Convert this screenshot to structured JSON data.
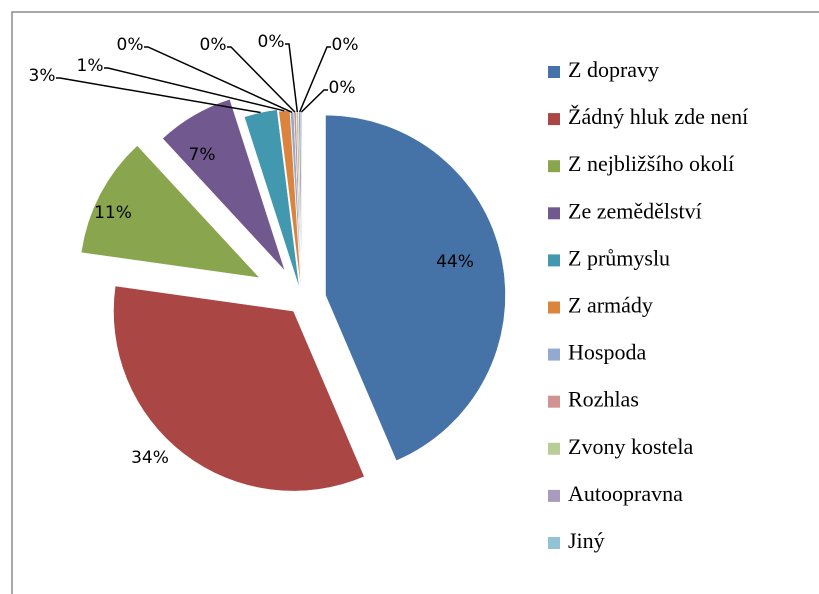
{
  "chart_data": {
    "type": "pie",
    "categories": [
      "Z dopravy",
      "Žádný hluk zde není",
      "Z nejbližšího okolí",
      "Ze zemědělství",
      "Z průmyslu",
      "Z armády",
      "Hospoda",
      "Rozhlas",
      "Zvony kostela",
      "Autoopravna",
      "Jiný"
    ],
    "values": [
      44,
      34,
      11,
      7,
      3,
      1,
      0.3,
      0.2,
      0.2,
      0.2,
      0.1
    ],
    "value_labels": [
      "44%",
      "34%",
      "11%",
      "7%",
      "3%",
      "1%",
      "0%",
      "0%",
      "0%",
      "0%",
      "0%"
    ],
    "colors": [
      "#4572a7",
      "#aa4643",
      "#89a54e",
      "#71588f",
      "#4198af",
      "#db843d",
      "#93a9cf",
      "#d19392",
      "#b9cd96",
      "#a99bbd",
      "#92c3d5"
    ]
  }
}
